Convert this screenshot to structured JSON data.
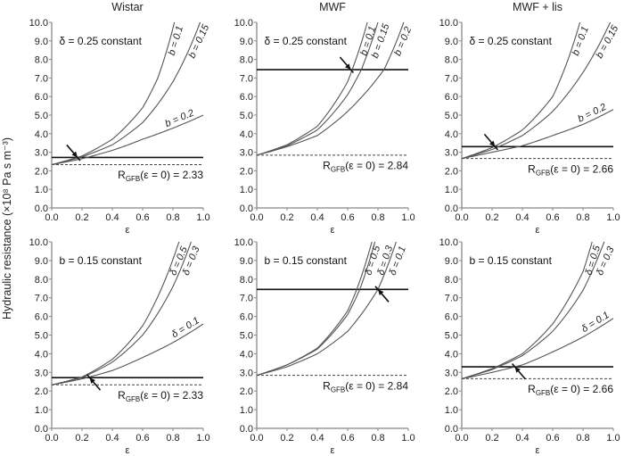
{
  "chart_data": {
    "type": "line",
    "ylabel": "Hydraulic resistance (×10⁸ Pa s m⁻³)",
    "xlabel": "ε",
    "xlim": [
      0,
      1.0
    ],
    "ylim": [
      0,
      10.0
    ],
    "xticks": [
      "0.0",
      "0.2",
      "0.4",
      "0.6",
      "0.8",
      "1.0"
    ],
    "yticks": [
      "0.0",
      "1.0",
      "2.0",
      "3.0",
      "4.0",
      "5.0",
      "6.0",
      "7.0",
      "8.0",
      "9.0",
      "10.0"
    ],
    "grid": false,
    "colors": {
      "curve": "#555555",
      "threshold": "#111111",
      "baseline": "#444444"
    },
    "panels": [
      {
        "title": "Wistar",
        "note": "δ = 0.25 constant",
        "r0": 2.33,
        "r0_label": "(ε = 0) = 2.33",
        "r0_prefix": "R",
        "r0_sub": "GFB",
        "threshold": 2.72,
        "arrow": {
          "x": 0.17,
          "y": 2.72,
          "from": "upper-left"
        },
        "series": [
          {
            "name": "b = 0.1",
            "x": [
              0,
              0.2,
              0.4,
              0.6,
              0.7,
              0.81
            ],
            "y": [
              2.33,
              2.8,
              3.7,
              5.4,
              7.0,
              10
            ]
          },
          {
            "name": "b = 0.15",
            "x": [
              0,
              0.2,
              0.4,
              0.6,
              0.8,
              0.98
            ],
            "y": [
              2.33,
              2.75,
              3.4,
              4.6,
              6.8,
              10
            ]
          },
          {
            "name": "b = 0.2",
            "x": [
              0,
              0.2,
              0.4,
              0.6,
              0.8,
              1.0
            ],
            "y": [
              2.33,
              2.65,
              3.1,
              3.7,
              4.3,
              5.0
            ]
          }
        ]
      },
      {
        "title": "MWF",
        "note": "δ = 0.25 constant",
        "r0": 2.84,
        "r0_label": "(ε = 0) = 2.84",
        "r0_prefix": "R",
        "r0_sub": "GFB",
        "threshold": 7.45,
        "arrow": {
          "x": 0.62,
          "y": 7.45,
          "from": "upper-left"
        },
        "series": [
          {
            "name": "b = 0.1",
            "x": [
              0,
              0.2,
              0.4,
              0.6,
              0.63,
              0.73
            ],
            "y": [
              2.84,
              3.4,
              4.4,
              6.8,
              7.45,
              10
            ]
          },
          {
            "name": "b = 0.15",
            "x": [
              0,
              0.2,
              0.4,
              0.6,
              0.69,
              0.8
            ],
            "y": [
              2.84,
              3.35,
              4.2,
              6.1,
              7.45,
              10
            ]
          },
          {
            "name": "b = 0.2",
            "x": [
              0,
              0.2,
              0.4,
              0.6,
              0.84,
              0.97
            ],
            "y": [
              2.84,
              3.3,
              3.9,
              5.2,
              7.45,
              10
            ]
          }
        ]
      },
      {
        "title": "MWF + lis",
        "note": "δ = 0.25 constant",
        "r0": 2.66,
        "r0_label": "(ε = 0) = 2.66",
        "r0_prefix": "R",
        "r0_sub": "GFB",
        "threshold": 3.3,
        "arrow": {
          "x": 0.22,
          "y": 3.3,
          "from": "upper-left"
        },
        "series": [
          {
            "name": "b = 0.1",
            "x": [
              0,
              0.2,
              0.4,
              0.6,
              0.78
            ],
            "y": [
              2.66,
              3.25,
              4.2,
              6.0,
              10
            ]
          },
          {
            "name": "b = 0.15",
            "x": [
              0,
              0.2,
              0.4,
              0.6,
              0.8,
              0.98
            ],
            "y": [
              2.66,
              3.15,
              3.9,
              5.2,
              7.3,
              10
            ]
          },
          {
            "name": "b = 0.2",
            "x": [
              0,
              0.2,
              0.4,
              0.6,
              0.8,
              1.0
            ],
            "y": [
              2.66,
              3.0,
              3.35,
              3.9,
              4.5,
              5.3
            ]
          }
        ]
      },
      {
        "title": "",
        "note": "b = 0.15 constant",
        "r0": 2.33,
        "r0_label": "(ε = 0) = 2.33",
        "r0_prefix": "R",
        "r0_sub": "GFB",
        "threshold": 2.72,
        "arrow": {
          "x": 0.25,
          "y": 2.72,
          "from": "lower-right"
        },
        "series": [
          {
            "name": "δ = 0.5",
            "x": [
              0,
              0.2,
              0.4,
              0.6,
              0.84
            ],
            "y": [
              2.33,
              2.75,
              3.7,
              5.5,
              10
            ]
          },
          {
            "name": "δ = 0.3",
            "x": [
              0,
              0.2,
              0.4,
              0.6,
              0.8,
              0.92
            ],
            "y": [
              2.33,
              2.72,
              3.55,
              5.0,
              7.6,
              10
            ]
          },
          {
            "name": "δ = 0.1",
            "x": [
              0,
              0.2,
              0.4,
              0.6,
              0.8,
              1.0
            ],
            "y": [
              2.33,
              2.65,
              3.1,
              3.8,
              4.6,
              5.6
            ]
          }
        ]
      },
      {
        "title": "",
        "note": "b = 0.15 constant",
        "r0": 2.84,
        "r0_label": "(ε = 0) = 2.84",
        "r0_prefix": "R",
        "r0_sub": "GFB",
        "threshold": 7.45,
        "arrow": {
          "x": 0.8,
          "y": 7.45,
          "from": "lower-right"
        },
        "series": [
          {
            "name": "δ = 0.5",
            "x": [
              0,
              0.2,
              0.4,
              0.6,
              0.66,
              0.76
            ],
            "y": [
              2.84,
              3.4,
              4.3,
              6.3,
              7.45,
              10
            ]
          },
          {
            "name": "δ = 0.3",
            "x": [
              0,
              0.2,
              0.4,
              0.6,
              0.68,
              0.78
            ],
            "y": [
              2.84,
              3.4,
              4.25,
              6.1,
              7.45,
              10
            ]
          },
          {
            "name": "δ = 0.1",
            "x": [
              0,
              0.2,
              0.4,
              0.6,
              0.8,
              0.92
            ],
            "y": [
              2.84,
              3.3,
              4.0,
              5.2,
              7.45,
              10
            ]
          }
        ]
      },
      {
        "title": "",
        "note": "b = 0.15 constant",
        "r0": 2.66,
        "r0_label": "(ε = 0) = 2.66",
        "r0_prefix": "R",
        "r0_sub": "GFB",
        "threshold": 3.3,
        "arrow": {
          "x": 0.35,
          "y": 3.3,
          "from": "lower-right"
        },
        "series": [
          {
            "name": "δ = 0.5",
            "x": [
              0,
              0.2,
              0.4,
              0.6,
              0.8,
              0.86
            ],
            "y": [
              2.66,
              3.2,
              4.0,
              5.6,
              8.4,
              10
            ]
          },
          {
            "name": "δ = 0.3",
            "x": [
              0,
              0.2,
              0.4,
              0.6,
              0.8,
              0.94
            ],
            "y": [
              2.66,
              3.15,
              3.9,
              5.2,
              7.4,
              10
            ]
          },
          {
            "name": "δ = 0.1",
            "x": [
              0,
              0.2,
              0.4,
              0.6,
              0.8,
              1.0
            ],
            "y": [
              2.66,
              3.0,
              3.4,
              4.1,
              4.9,
              5.9
            ]
          }
        ]
      }
    ]
  }
}
